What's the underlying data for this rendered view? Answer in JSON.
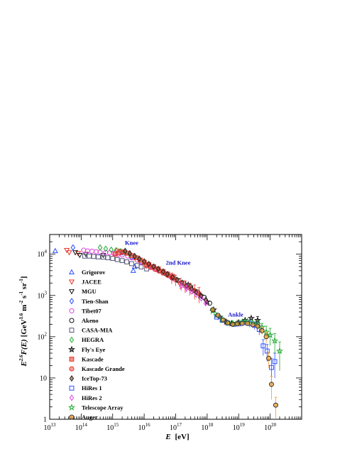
{
  "chart_data": {
    "type": "scatter",
    "title": "",
    "xlabel": {
      "symbol": "E",
      "unit": "[eV]"
    },
    "ylabel": {
      "base": "E",
      "exponent": "2.6",
      "func": "F(E)",
      "unit_open": "[GeV",
      "unit_exp1": "1.6",
      "unit_mid": " m",
      "unit_exp2": "-2",
      "unit_s": " s",
      "unit_exp3": "-1",
      "unit_sr": " sr",
      "unit_exp4": "-1",
      "unit_close": "]"
    },
    "x_scale": "log",
    "y_scale": "log",
    "xlim": [
      10000000000000.0,
      1e+21
    ],
    "ylim": [
      1,
      30000
    ],
    "grid": false,
    "legend_position": "left",
    "x_ticks": [
      {
        "value": 10000000000000.0,
        "base": "10",
        "exp": "13"
      },
      {
        "value": 100000000000000.0,
        "base": "10",
        "exp": "14"
      },
      {
        "value": 1000000000000000.0,
        "base": "10",
        "exp": "15"
      },
      {
        "value": 1e+16,
        "base": "10",
        "exp": "16"
      },
      {
        "value": 1e+17,
        "base": "10",
        "exp": "17"
      },
      {
        "value": 1e+18,
        "base": "10",
        "exp": "18"
      },
      {
        "value": 1e+19,
        "base": "10",
        "exp": "19"
      },
      {
        "value": 1e+20,
        "base": "10",
        "exp": "20"
      }
    ],
    "y_ticks": [
      {
        "value": 1,
        "base": "1",
        "exp": ""
      },
      {
        "value": 10,
        "base": "10",
        "exp": ""
      },
      {
        "value": 100,
        "base": "10",
        "exp": "2"
      },
      {
        "value": 1000,
        "base": "10",
        "exp": "3"
      },
      {
        "value": 10000,
        "base": "10",
        "exp": "4"
      }
    ],
    "annotations": [
      {
        "text": "Knee",
        "x": 4000000000000000.0,
        "y": 17000
      },
      {
        "text": "2nd Knee",
        "x": 1.2e+17,
        "y": 5600
      },
      {
        "text": "Ankle",
        "x": 8e+18,
        "y": 310
      }
    ],
    "series": [
      {
        "name": "Grigorov",
        "marker": "triangle-up",
        "color": "#2b4dff",
        "points": [
          [
            15000000000000.0,
            12000,
            0
          ],
          [
            4500000000000000.0,
            4000,
            0
          ],
          [
            5000000000000000.0,
            5000,
            0
          ]
        ]
      },
      {
        "name": "JACEE",
        "marker": "triangle-down",
        "color": "#e8342a",
        "points": [
          [
            35000000000000.0,
            12500,
            0
          ],
          [
            42000000000000.0,
            11000,
            0
          ],
          [
            80000000000000.0,
            10500,
            0
          ],
          [
            1400000000000000.0,
            12000,
            0
          ],
          [
            2000000000000000.0,
            11500,
            0
          ]
        ]
      },
      {
        "name": "MGU",
        "marker": "triangle-down",
        "color": "#111111",
        "points": [
          [
            65000000000000.0,
            11000,
            0
          ],
          [
            90000000000000.0,
            9500,
            0
          ],
          [
            140000000000000.0,
            10000,
            0
          ],
          [
            500000000000000.0,
            9500,
            0
          ]
        ]
      },
      {
        "name": "Tien-Shan",
        "marker": "diamond",
        "color": "#2b4dff",
        "points": [
          [
            55000000000000.0,
            14500,
            0
          ],
          [
            2000000000000000.0,
            11000,
            0
          ],
          [
            4000000000000000.0,
            8500,
            0
          ],
          [
            8000000000000000.0,
            6500,
            0
          ],
          [
            1.5e+16,
            5000,
            0
          ]
        ]
      },
      {
        "name": "Tibet07",
        "marker": "circle",
        "color": "#e040e0",
        "points": [
          [
            120000000000000.0,
            12500,
            0
          ],
          [
            160000000000000.0,
            12000,
            0
          ],
          [
            220000000000000.0,
            11800,
            0
          ],
          [
            300000000000000.0,
            11500,
            0
          ],
          [
            400000000000000.0,
            11200,
            0
          ],
          [
            600000000000000.0,
            11000,
            0
          ],
          [
            800000000000000.0,
            10800,
            0
          ],
          [
            1100000000000000.0,
            10500,
            0
          ],
          [
            1500000000000000.0,
            10000,
            0
          ],
          [
            2000000000000000.0,
            9600,
            0
          ],
          [
            3000000000000000.0,
            9000,
            0
          ],
          [
            4000000000000000.0,
            8200,
            0
          ],
          [
            6000000000000000.0,
            7200,
            0
          ],
          [
            8000000000000000.0,
            6500,
            0
          ],
          [
            1.2e+16,
            5600,
            0
          ],
          [
            1.8e+16,
            4800,
            0
          ],
          [
            2.5e+16,
            4200,
            0
          ],
          [
            4e+16,
            3500,
            0
          ],
          [
            6e+16,
            3000,
            0
          ],
          [
            8e+16,
            2600,
            0
          ]
        ]
      },
      {
        "name": "Akeno",
        "marker": "circle",
        "color": "#111111",
        "points": [
          [
            3e+16,
            4000,
            0
          ],
          [
            5e+16,
            3300,
            0
          ],
          [
            8e+16,
            2700,
            0
          ],
          [
            1.2e+17,
            2300,
            0
          ],
          [
            1.8e+17,
            2000,
            0
          ],
          [
            3e+17,
            1600,
            0
          ],
          [
            5e+17,
            1200,
            0
          ],
          [
            8e+17,
            900,
            0
          ],
          [
            1.2e+18,
            650,
            0
          ]
        ]
      },
      {
        "name": "CASA-MIA",
        "marker": "square",
        "color": "#55557a",
        "points": [
          [
            130000000000000.0,
            9000,
            0
          ],
          [
            180000000000000.0,
            9000,
            0
          ],
          [
            250000000000000.0,
            8800,
            0
          ],
          [
            350000000000000.0,
            8600,
            0
          ],
          [
            500000000000000.0,
            8500,
            0
          ],
          [
            700000000000000.0,
            8200,
            0
          ],
          [
            1000000000000000.0,
            7900,
            0
          ],
          [
            1400000000000000.0,
            7400,
            0
          ],
          [
            2000000000000000.0,
            7000,
            0
          ],
          [
            2800000000000000.0,
            6500,
            0
          ],
          [
            4000000000000000.0,
            5900,
            0
          ],
          [
            6000000000000000.0,
            5300,
            0
          ],
          [
            8000000000000000.0,
            4900,
            0
          ],
          [
            1.2e+16,
            4400,
            0
          ]
        ]
      },
      {
        "name": "HEGRA",
        "marker": "diamond",
        "color": "#22aa33",
        "points": [
          [
            400000000000000.0,
            14500,
            0
          ],
          [
            600000000000000.0,
            13500,
            0
          ],
          [
            900000000000000.0,
            12800,
            0
          ],
          [
            1300000000000000.0,
            12500,
            0
          ],
          [
            1800000000000000.0,
            11800,
            0
          ],
          [
            2500000000000000.0,
            10800,
            0
          ],
          [
            3500000000000000.0,
            9600,
            0
          ],
          [
            5000000000000000.0,
            8400,
            0
          ],
          [
            7000000000000000.0,
            7300,
            0
          ],
          [
            1e+16,
            6300,
            0
          ]
        ]
      },
      {
        "name": "Fly's Eye",
        "marker": "star",
        "color": "#111111",
        "points": [
          [
            2.5e+17,
            1800,
            0
          ],
          [
            4e+17,
            1300,
            0
          ],
          [
            6e+17,
            1000,
            0
          ],
          [
            1e+18,
            700,
            0
          ],
          [
            1.6e+18,
            450,
            0
          ],
          [
            2.5e+18,
            300,
            0
          ],
          [
            4e+18,
            230,
            0
          ],
          [
            6e+18,
            210,
            0
          ],
          [
            1e+19,
            220,
            0
          ],
          [
            1.6e+19,
            250,
            0
          ],
          [
            2.5e+19,
            280,
            0
          ],
          [
            4e+19,
            250,
            60
          ]
        ]
      },
      {
        "name": "Kascade",
        "marker": "square",
        "color": "#e8342a",
        "points": [
          [
            1200000000000000.0,
            10000,
            0
          ],
          [
            1600000000000000.0,
            10800,
            0
          ],
          [
            2200000000000000.0,
            11200,
            0
          ],
          [
            3000000000000000.0,
            10600,
            0
          ],
          [
            4000000000000000.0,
            9200,
            0
          ],
          [
            5500000000000000.0,
            8200,
            0
          ],
          [
            7500000000000000.0,
            7200,
            0
          ],
          [
            1e+16,
            6400,
            0
          ],
          [
            1.4e+16,
            5600,
            0
          ],
          [
            2e+16,
            5000,
            0
          ],
          [
            2.8e+16,
            4400,
            0
          ],
          [
            4e+16,
            3800,
            0
          ],
          [
            5.5e+16,
            3300,
            0
          ],
          [
            8e+16,
            2900,
            0
          ]
        ]
      },
      {
        "name": "Kascade Grande",
        "marker": "circle",
        "color": "#e8342a",
        "points": [
          [
            1.2e+16,
            5200,
            0
          ],
          [
            1.6e+16,
            4800,
            0
          ],
          [
            2.2e+16,
            4300,
            0
          ],
          [
            3e+16,
            3900,
            0
          ],
          [
            4e+16,
            3500,
            0
          ],
          [
            5.5e+16,
            3100,
            0
          ],
          [
            7.5e+16,
            2700,
            800
          ],
          [
            1e+17,
            2400,
            700
          ],
          [
            1.4e+17,
            2000,
            600
          ],
          [
            2e+17,
            1700,
            550
          ],
          [
            2.8e+17,
            1500,
            500
          ],
          [
            4e+17,
            1300,
            500
          ],
          [
            5.5e+17,
            1100,
            450
          ]
        ]
      },
      {
        "name": "IceTop-73",
        "marker": "diamond",
        "color": "#a0522d",
        "points": [
          [
            2500000000000000.0,
            12000,
            0
          ],
          [
            3500000000000000.0,
            10500,
            0
          ],
          [
            5000000000000000.0,
            9000,
            0
          ],
          [
            7000000000000000.0,
            7800,
            0
          ],
          [
            1e+16,
            6700,
            0
          ],
          [
            1.4e+16,
            5800,
            0
          ],
          [
            2e+16,
            5000,
            0
          ],
          [
            2.8e+16,
            4400,
            0
          ],
          [
            4e+16,
            3800,
            0
          ],
          [
            5.5e+16,
            3300,
            0
          ],
          [
            8e+16,
            2800,
            0
          ],
          [
            1.1e+17,
            2400,
            0
          ],
          [
            1.6e+17,
            2050,
            0
          ],
          [
            2.2e+17,
            1700,
            0
          ],
          [
            3.2e+17,
            1450,
            0
          ],
          [
            4.5e+17,
            1200,
            0
          ],
          [
            6.5e+17,
            980,
            0
          ],
          [
            9e+17,
            780,
            0
          ]
        ]
      },
      {
        "name": "HiRes 1",
        "marker": "square",
        "color": "#2b4dff",
        "points": [
          [
            2e+18,
            300,
            0
          ],
          [
            3e+18,
            250,
            0
          ],
          [
            4.5e+18,
            215,
            0
          ],
          [
            7e+18,
            200,
            0
          ],
          [
            1e+19,
            205,
            0
          ],
          [
            1.5e+19,
            220,
            0
          ],
          [
            2.2e+19,
            210,
            40
          ],
          [
            3.2e+19,
            190,
            40
          ],
          [
            4.5e+19,
            150,
            40
          ],
          [
            6e+19,
            60,
            25
          ],
          [
            8e+19,
            45,
            20
          ],
          [
            1.1e+20,
            18,
            12
          ],
          [
            1.4e+20,
            25,
            15
          ]
        ]
      },
      {
        "name": "HiRes 2",
        "marker": "diamond",
        "color": "#e040e0",
        "points": [
          [
            1.5e+17,
            1700,
            400
          ],
          [
            2.2e+17,
            1500,
            300
          ],
          [
            3.2e+17,
            1250,
            0
          ],
          [
            4.5e+17,
            1050,
            0
          ],
          [
            6.5e+17,
            850,
            0
          ],
          [
            9e+17,
            650,
            0
          ]
        ]
      },
      {
        "name": "Telescope Array",
        "marker": "star",
        "color": "#22aa33",
        "points": [
          [
            1.5e+18,
            420,
            0
          ],
          [
            2e+18,
            330,
            0
          ],
          [
            3e+18,
            260,
            0
          ],
          [
            4.5e+18,
            220,
            0
          ],
          [
            6.5e+18,
            210,
            0
          ],
          [
            9e+18,
            215,
            0
          ],
          [
            1.3e+19,
            230,
            0
          ],
          [
            1.9e+19,
            235,
            0
          ],
          [
            2.8e+19,
            215,
            0
          ],
          [
            4e+19,
            200,
            40
          ],
          [
            5.5e+19,
            170,
            40
          ],
          [
            7.5e+19,
            130,
            50
          ],
          [
            1e+20,
            110,
            50
          ],
          [
            1.4e+20,
            80,
            40
          ],
          [
            2e+20,
            45,
            30
          ]
        ]
      },
      {
        "name": "Auger",
        "marker": "circle",
        "color": "#f59b2a",
        "points": [
          [
            1.5e+18,
            450,
            0
          ],
          [
            2.2e+18,
            330,
            0
          ],
          [
            3.2e+18,
            255,
            0
          ],
          [
            4.5e+18,
            215,
            0
          ],
          [
            6.5e+18,
            200,
            0
          ],
          [
            9e+18,
            205,
            0
          ],
          [
            1.3e+19,
            210,
            0
          ],
          [
            1.9e+19,
            210,
            0
          ],
          [
            2.8e+19,
            195,
            0
          ],
          [
            4e+19,
            180,
            0
          ],
          [
            5.5e+19,
            140,
            30
          ],
          [
            7.5e+19,
            100,
            30
          ],
          [
            9e+19,
            30,
            12
          ],
          [
            1.1e+20,
            7,
            4
          ],
          [
            1.5e+20,
            2.2,
            1.2
          ]
        ]
      }
    ]
  }
}
